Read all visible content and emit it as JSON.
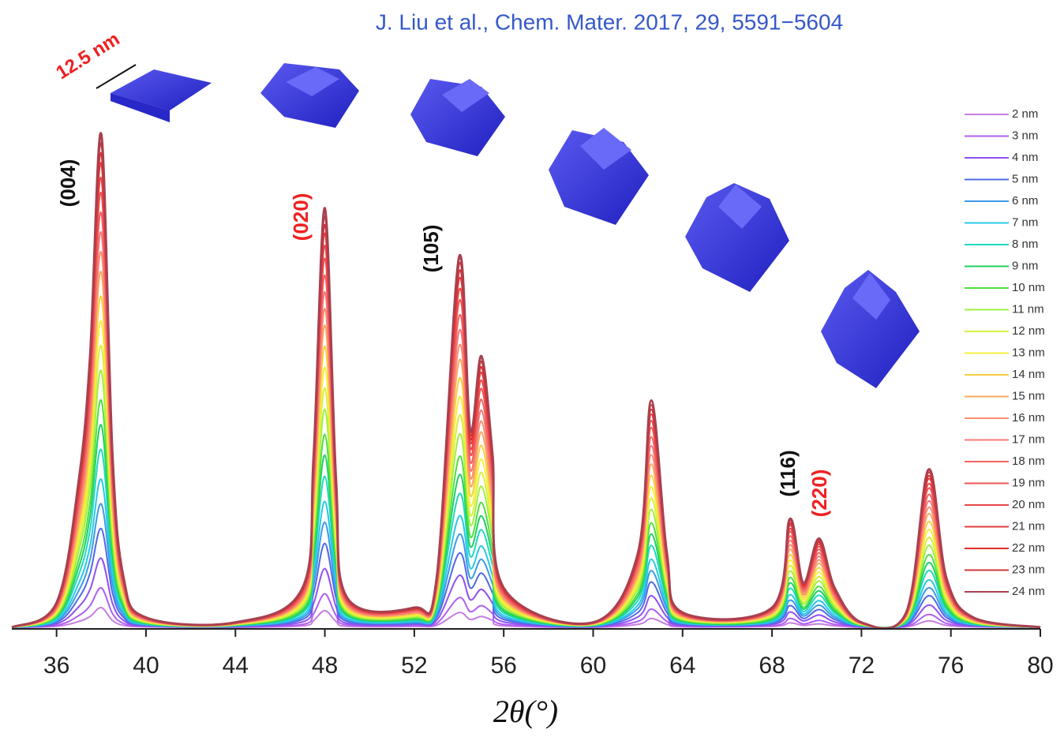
{
  "chart_data": {
    "type": "line",
    "source": "J. Liu et al., Chem. Mater. 2017, 29, 5591−5604",
    "x_label": "2θ(°)",
    "size_label": "12.5 nm",
    "annotations": [
      {
        "text": "(004)",
        "color": "#111111"
      },
      {
        "text": "(020)",
        "color": "#ee2222"
      },
      {
        "text": "(105)",
        "color": "#111111"
      },
      {
        "text": "(116)",
        "color": "#111111"
      },
      {
        "text": "(220)",
        "color": "#ee2222"
      }
    ],
    "xlim": [
      34,
      80
    ],
    "ylim": [
      0,
      100
    ],
    "xticks": [
      36,
      40,
      44,
      48,
      52,
      56,
      60,
      64,
      68,
      72,
      76,
      80
    ],
    "x": [
      34,
      36,
      37,
      37.5,
      38,
      38.5,
      39,
      40,
      44,
      47,
      47.5,
      48,
      48.5,
      49,
      52,
      53,
      54,
      54.5,
      55,
      55.5,
      56,
      60,
      62,
      62.6,
      63.3,
      64,
      68,
      68.8,
      69.4,
      70.1,
      70.8,
      72,
      74,
      75,
      75.8,
      77,
      80
    ],
    "series": [
      {
        "name": "2 nm",
        "color": "#c77ee0",
        "values": [
          0,
          0.2,
          1.2,
          2.2,
          4,
          1.4,
          0.4,
          0.1,
          0,
          0.3,
          1.4,
          3.4,
          1.2,
          0.2,
          0.2,
          0.4,
          3,
          1.6,
          2.2,
          1.4,
          0.3,
          0,
          0.6,
          1.8,
          0.6,
          0.1,
          0.2,
          0.9,
          0.4,
          0.7,
          0.3,
          0,
          0.1,
          1.3,
          0.4,
          0.1,
          0
        ]
      },
      {
        "name": "3 nm",
        "color": "#b060f0",
        "values": [
          0,
          0.4,
          2.4,
          4.4,
          8,
          2.8,
          0.8,
          0.2,
          0.1,
          0.6,
          2.8,
          6.8,
          2.4,
          0.5,
          0.3,
          0.8,
          6,
          3.2,
          4.4,
          2.8,
          0.6,
          0.1,
          1.2,
          3.7,
          1.2,
          0.2,
          0.3,
          1.8,
          0.7,
          1.4,
          0.6,
          0.1,
          0.2,
          2.6,
          0.8,
          0.2,
          0
        ]
      },
      {
        "name": "4 nm",
        "color": "#9050f0",
        "values": [
          0,
          0.7,
          4.2,
          7.7,
          14,
          4.9,
          1.4,
          0.3,
          0.1,
          1.1,
          4.9,
          11.9,
          4.2,
          0.8,
          0.6,
          1.4,
          10.5,
          5.6,
          7.7,
          4.9,
          1.1,
          0.1,
          2.1,
          6.4,
          2.1,
          0.4,
          0.6,
          3.1,
          1.3,
          2.5,
          1.1,
          0.1,
          0.4,
          4.5,
          1.4,
          0.3,
          0
        ]
      },
      {
        "name": "5 nm",
        "color": "#5068e8",
        "values": [
          0,
          1,
          6,
          11,
          20,
          7,
          2,
          0.4,
          0.2,
          1.6,
          7,
          17,
          6,
          1.2,
          0.8,
          2,
          15,
          8,
          11,
          7,
          1.6,
          0.2,
          3,
          9.2,
          3,
          0.6,
          0.8,
          4.4,
          1.8,
          3.6,
          1.6,
          0.2,
          0.6,
          6.4,
          2,
          0.4,
          0
        ]
      },
      {
        "name": "6 nm",
        "color": "#3c9ae8",
        "values": [
          0,
          1.3,
          7.5,
          13.8,
          25,
          8.8,
          2.5,
          0.5,
          0.3,
          2,
          8.8,
          21.3,
          7.5,
          1.5,
          1,
          2.5,
          18.8,
          10,
          13.8,
          8.8,
          2,
          0.3,
          3.8,
          11.5,
          3.8,
          0.8,
          1,
          5.5,
          2.3,
          4.5,
          2,
          0.3,
          0.8,
          8,
          2.5,
          0.5,
          0
        ]
      },
      {
        "name": "7 nm",
        "color": "#28c8e8",
        "values": [
          0,
          1.5,
          9,
          16.5,
          30,
          10.5,
          3,
          0.6,
          0.3,
          2.4,
          10.5,
          25.5,
          9,
          1.8,
          1.2,
          3,
          22.5,
          12,
          16.5,
          10.5,
          2.4,
          0.3,
          4.5,
          13.8,
          4.5,
          0.9,
          1.2,
          6.6,
          2.7,
          5.4,
          2.4,
          0.3,
          0.9,
          9.6,
          3,
          0.6,
          0
        ]
      },
      {
        "name": "8 nm",
        "color": "#20d8c0",
        "values": [
          0,
          1.8,
          10.8,
          19.8,
          36,
          12.6,
          3.6,
          0.7,
          0.4,
          2.9,
          12.6,
          30.6,
          10.8,
          2.2,
          1.4,
          3.6,
          27,
          14.4,
          19.8,
          12.6,
          2.9,
          0.4,
          5.4,
          16.6,
          5.4,
          1.1,
          1.4,
          7.9,
          3.2,
          6.5,
          2.9,
          0.4,
          1.1,
          11.5,
          3.6,
          0.7,
          0
        ]
      },
      {
        "name": "9 nm",
        "color": "#20d060",
        "values": [
          0,
          2.1,
          12.3,
          22.6,
          41,
          14.4,
          4.1,
          0.8,
          0.4,
          3.3,
          14.4,
          34.9,
          12.3,
          2.5,
          1.6,
          4.1,
          30.8,
          16.4,
          22.6,
          14.4,
          3.3,
          0.4,
          6.2,
          18.9,
          6.2,
          1.2,
          1.6,
          9,
          3.7,
          7.4,
          3.3,
          0.4,
          1.2,
          13.1,
          4.1,
          0.8,
          0
        ]
      },
      {
        "name": "10 nm",
        "color": "#50e040",
        "values": [
          0,
          2.3,
          13.8,
          25.3,
          46,
          16.1,
          4.6,
          0.9,
          0.5,
          3.7,
          16.1,
          39.1,
          13.8,
          2.8,
          1.8,
          4.6,
          34.5,
          18.4,
          25.3,
          16.1,
          3.7,
          0.5,
          6.9,
          21.2,
          6.9,
          1.4,
          1.8,
          10.1,
          4.1,
          8.3,
          3.7,
          0.5,
          1.4,
          14.7,
          4.6,
          0.9,
          0
        ]
      },
      {
        "name": "11 nm",
        "color": "#a0f040",
        "values": [
          0,
          2.6,
          15.6,
          28.6,
          52,
          18.2,
          5.2,
          1,
          0.5,
          4.2,
          18.2,
          44.2,
          15.6,
          3.1,
          2.1,
          5.2,
          39,
          20.8,
          28.6,
          18.2,
          4.2,
          0.5,
          7.8,
          23.9,
          7.8,
          1.6,
          2.1,
          11.4,
          4.7,
          9.4,
          4.2,
          0.5,
          1.6,
          16.6,
          5.2,
          1,
          0
        ]
      },
      {
        "name": "12 nm",
        "color": "#d8f040",
        "values": [
          0,
          2.9,
          17.1,
          31.4,
          57,
          20,
          5.7,
          1.1,
          0.6,
          4.6,
          20,
          48.5,
          17.1,
          3.4,
          2.3,
          5.7,
          42.8,
          22.8,
          31.4,
          20,
          4.6,
          0.6,
          8.6,
          26.2,
          8.6,
          1.7,
          2.3,
          12.5,
          5.1,
          10.3,
          4.6,
          0.6,
          1.7,
          18.2,
          5.7,
          1.1,
          0
        ]
      },
      {
        "name": "13 nm",
        "color": "#f4f040",
        "values": [
          0,
          3.1,
          18.6,
          34.1,
          62,
          21.7,
          6.2,
          1.2,
          0.6,
          5,
          21.7,
          52.7,
          18.6,
          3.7,
          2.5,
          6.2,
          46.5,
          24.8,
          34.1,
          21.7,
          5,
          0.6,
          9.3,
          28.5,
          9.3,
          1.9,
          2.5,
          13.6,
          5.6,
          11.2,
          5,
          0.6,
          1.9,
          19.8,
          6.2,
          1.2,
          0
        ]
      },
      {
        "name": "14 nm",
        "color": "#f8d040",
        "values": [
          0,
          3.4,
          20.1,
          36.9,
          67,
          23.5,
          6.7,
          1.3,
          0.7,
          5.4,
          23.5,
          57,
          20.1,
          4,
          2.7,
          6.7,
          50.3,
          26.8,
          36.9,
          23.5,
          5.4,
          0.7,
          10.1,
          30.8,
          10.1,
          2,
          2.7,
          14.7,
          6,
          12.1,
          5.4,
          0.7,
          2,
          21.4,
          6.7,
          1.3,
          0
        ]
      },
      {
        "name": "15 nm",
        "color": "#f8a860",
        "values": [
          0,
          3.6,
          21.6,
          39.6,
          72,
          25.2,
          7.2,
          1.4,
          0.7,
          5.8,
          25.2,
          61.2,
          21.6,
          4.3,
          2.9,
          7.2,
          54,
          28.8,
          39.6,
          25.2,
          5.8,
          0.7,
          10.8,
          33.1,
          10.8,
          2.2,
          2.9,
          15.8,
          6.5,
          13,
          5.8,
          0.7,
          2.2,
          23,
          7.2,
          1.4,
          0
        ]
      },
      {
        "name": "16 nm",
        "color": "#f89070",
        "values": [
          0,
          3.8,
          22.8,
          41.8,
          76,
          26.6,
          7.6,
          1.5,
          0.8,
          6.1,
          26.6,
          64.6,
          22.8,
          4.6,
          3,
          7.6,
          57,
          30.4,
          41.8,
          26.6,
          6.1,
          0.8,
          11.4,
          35,
          11.4,
          2.3,
          3,
          16.7,
          6.8,
          13.7,
          6.1,
          0.8,
          2.3,
          24.3,
          7.6,
          1.5,
          0
        ]
      },
      {
        "name": "17 nm",
        "color": "#f87878",
        "values": [
          0,
          4,
          24,
          44,
          80,
          28,
          8,
          1.6,
          0.8,
          6.4,
          28,
          68,
          24,
          4.8,
          3.2,
          8,
          60,
          32,
          44,
          28,
          6.4,
          0.8,
          12,
          36.8,
          12,
          2.4,
          3.2,
          17.6,
          7.2,
          14.4,
          6.4,
          0.8,
          2.4,
          25.6,
          8,
          1.6,
          0
        ]
      },
      {
        "name": "18 nm",
        "color": "#f06464",
        "values": [
          0,
          4.2,
          25.2,
          46.2,
          84,
          29.4,
          8.4,
          1.7,
          0.8,
          6.7,
          29.4,
          71.4,
          25.2,
          5,
          3.4,
          8.4,
          63,
          33.6,
          46.2,
          29.4,
          6.7,
          0.8,
          12.6,
          38.6,
          12.6,
          2.5,
          3.4,
          18.5,
          7.6,
          15.1,
          6.7,
          0.8,
          2.5,
          26.9,
          8.4,
          1.7,
          0
        ]
      },
      {
        "name": "19 nm",
        "color": "#f05454",
        "values": [
          0,
          4.4,
          26.4,
          48.4,
          88,
          30.8,
          8.8,
          1.8,
          0.9,
          7,
          30.8,
          74.8,
          26.4,
          5.3,
          3.5,
          8.8,
          66,
          35.2,
          48.4,
          30.8,
          7,
          0.9,
          13.2,
          40.5,
          13.2,
          2.6,
          3.5,
          19.4,
          7.9,
          15.8,
          7,
          0.9,
          2.6,
          28.2,
          8.8,
          1.8,
          0
        ]
      },
      {
        "name": "20 nm",
        "color": "#e84848",
        "values": [
          0,
          4.6,
          27.3,
          50.1,
          91,
          31.9,
          9.1,
          1.8,
          0.9,
          7.3,
          31.9,
          77.4,
          27.3,
          5.5,
          3.6,
          9.1,
          68.3,
          36.4,
          50.1,
          31.9,
          7.3,
          0.9,
          13.7,
          41.9,
          13.7,
          2.7,
          3.6,
          20,
          8.2,
          16.4,
          7.3,
          0.9,
          2.7,
          29.1,
          9.1,
          1.8,
          0
        ]
      },
      {
        "name": "21 nm",
        "color": "#e63c3c",
        "values": [
          0,
          4.7,
          28.2,
          51.7,
          94,
          32.9,
          9.4,
          1.9,
          0.9,
          7.5,
          32.9,
          79.9,
          28.2,
          5.6,
          3.8,
          9.4,
          70.5,
          37.6,
          51.7,
          32.9,
          7.5,
          0.9,
          14.1,
          43.2,
          14.1,
          2.8,
          3.8,
          20.7,
          8.5,
          16.9,
          7.5,
          0.9,
          2.8,
          30.1,
          9.4,
          1.9,
          0
        ]
      },
      {
        "name": "22 nm",
        "color": "#e02c2c",
        "values": [
          0,
          4.8,
          28.8,
          52.8,
          96,
          33.6,
          9.6,
          1.9,
          1,
          7.7,
          33.6,
          81.6,
          28.8,
          5.8,
          3.8,
          9.6,
          72,
          38.4,
          52.8,
          33.6,
          7.7,
          1,
          14.4,
          44.2,
          14.4,
          2.9,
          3.8,
          21.1,
          8.6,
          17.3,
          7.7,
          1,
          2.9,
          30.7,
          9.6,
          1.9,
          0
        ]
      },
      {
        "name": "23 nm",
        "color": "#d03838",
        "values": [
          0,
          4.9,
          29.4,
          53.9,
          98,
          34.3,
          9.8,
          2,
          1,
          7.8,
          34.3,
          83.3,
          29.4,
          5.9,
          3.9,
          9.8,
          73.5,
          39.2,
          53.9,
          34.3,
          7.8,
          1,
          14.7,
          45.1,
          14.7,
          2.9,
          3.9,
          21.6,
          8.8,
          17.6,
          7.8,
          1,
          2.9,
          31.4,
          9.8,
          2,
          0
        ]
      },
      {
        "name": "24 nm",
        "color": "#a84050",
        "values": [
          0,
          5,
          30,
          55,
          100,
          35,
          10,
          2,
          1,
          8,
          35,
          85,
          30,
          6,
          4,
          10,
          75,
          40,
          55,
          35,
          8,
          1,
          15,
          46,
          15,
          3,
          4,
          22,
          9,
          18,
          8,
          1,
          3,
          32,
          10,
          2,
          0
        ]
      }
    ]
  }
}
